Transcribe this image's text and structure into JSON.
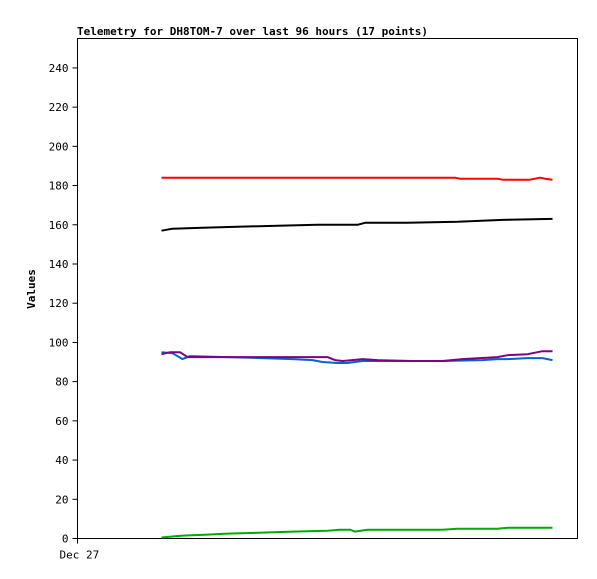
{
  "chart_data": {
    "type": "line",
    "title": "Telemetry for DH8TOM-7 over last 96 hours (17 points)",
    "ylabel": "Values",
    "xlabel": "",
    "ylim": [
      0,
      255
    ],
    "xlim": [
      0,
      100
    ],
    "yticks": [
      0,
      20,
      40,
      60,
      80,
      100,
      120,
      140,
      160,
      180,
      200,
      220,
      240
    ],
    "xtick_labels": [
      {
        "x": 0,
        "label": "Dec 27"
      }
    ],
    "grid": false,
    "legend": "none",
    "series": [
      {
        "color": "#ff0000",
        "x": [
          16.8,
          30,
          40,
          50,
          60,
          70,
          75.5,
          76.5,
          80,
          84,
          85,
          86,
          90.5,
          91.5,
          92.5,
          93.5,
          95
        ],
        "values": [
          184,
          184,
          184,
          184,
          184,
          184,
          184,
          183.5,
          183.5,
          183.5,
          183,
          183,
          183,
          183.5,
          184,
          183.5,
          183
        ]
      },
      {
        "color": "#000000",
        "x": [
          16.8,
          19,
          25,
          32,
          40,
          48,
          56,
          57.5,
          66,
          76,
          85,
          95
        ],
        "values": [
          157,
          158,
          158.5,
          159,
          159.5,
          160,
          160,
          161,
          161,
          161.5,
          162.5,
          163
        ]
      },
      {
        "color": "#0066cc",
        "x": [
          16.8,
          19,
          21,
          22.5,
          30,
          37,
          43,
          47,
          49,
          52,
          54,
          57,
          66,
          73,
          81,
          84,
          86,
          90,
          93,
          95
        ],
        "values": [
          95,
          94.5,
          91.5,
          93,
          92.5,
          92,
          91.5,
          91,
          90,
          89.5,
          89.5,
          90.5,
          90.5,
          90.5,
          91,
          91.5,
          91.5,
          92,
          92,
          91
        ]
      },
      {
        "color": "#800080",
        "x": [
          16.8,
          18.5,
          20.5,
          22,
          30,
          40,
          50,
          51.5,
          53,
          55,
          57,
          60,
          67,
          73,
          77,
          84,
          86,
          90,
          93,
          95
        ],
        "values": [
          94,
          95,
          95,
          92.5,
          92.5,
          92.5,
          92.5,
          91,
          90.5,
          91,
          91.5,
          91,
          90.5,
          90.5,
          91.5,
          92.5,
          93.5,
          94,
          95.5,
          95.5
        ]
      },
      {
        "color": "#00aa00",
        "x": [
          16.8,
          19,
          21,
          26,
          30,
          37,
          43,
          50,
          52.5,
          54.5,
          55.5,
          58,
          66,
          73,
          76,
          84,
          86,
          95
        ],
        "values": [
          0.5,
          1,
          1.5,
          2,
          2.5,
          3,
          3.5,
          4,
          4.5,
          4.5,
          3.5,
          4.5,
          4.5,
          4.5,
          5,
          5,
          5.5,
          5.5
        ]
      }
    ]
  }
}
